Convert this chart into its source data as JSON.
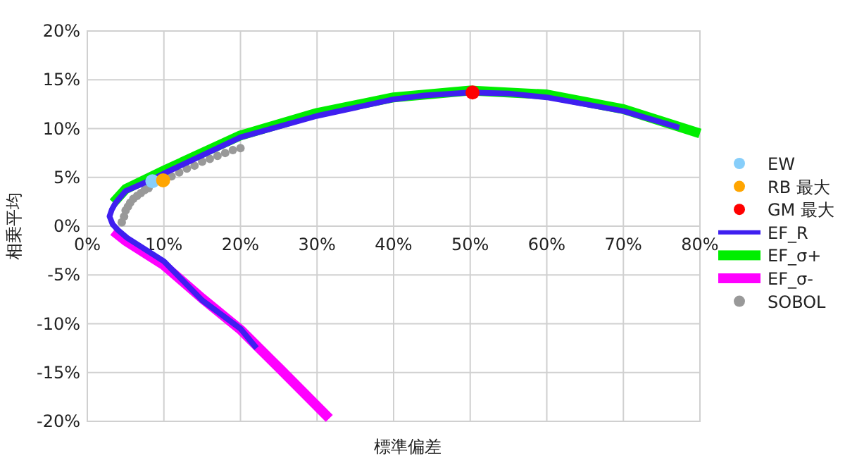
{
  "chart_data": {
    "type": "line",
    "xlabel": "標準偏差",
    "ylabel": "相乗平均",
    "xlim": [
      0,
      80
    ],
    "ylim": [
      -20,
      20
    ],
    "xticks": [
      {
        "value": 0,
        "label": "0%"
      },
      {
        "value": 10,
        "label": "10%"
      },
      {
        "value": 20,
        "label": "20%"
      },
      {
        "value": 30,
        "label": "30%"
      },
      {
        "value": 40,
        "label": "40%"
      },
      {
        "value": 50,
        "label": "50%"
      },
      {
        "value": 60,
        "label": "60%"
      },
      {
        "value": 70,
        "label": "70%"
      },
      {
        "value": 80,
        "label": "80%"
      }
    ],
    "yticks": [
      {
        "value": -20,
        "label": "-20%"
      },
      {
        "value": -15,
        "label": "-15%"
      },
      {
        "value": -10,
        "label": "-10%"
      },
      {
        "value": -5,
        "label": "-5%"
      },
      {
        "value": 0,
        "label": "0%"
      },
      {
        "value": 5,
        "label": "5%"
      },
      {
        "value": 10,
        "label": "10%"
      },
      {
        "value": 15,
        "label": "15%"
      },
      {
        "value": 20,
        "label": "20%"
      }
    ],
    "grid": true,
    "legend": "right",
    "series": [
      {
        "name": "EW",
        "type": "scatter",
        "color": "#87cefa",
        "x": [
          8.5
        ],
        "values": [
          4.6
        ]
      },
      {
        "name": "RB 最大",
        "type": "scatter",
        "color": "#ffa500",
        "x": [
          9.9
        ],
        "values": [
          4.7
        ]
      },
      {
        "name": "GM 最大",
        "type": "scatter",
        "color": "#ff0000",
        "x": [
          50.3
        ],
        "values": [
          13.7
        ]
      },
      {
        "name": "EF_R",
        "color": "#3f1ff0",
        "x": [
          77.3,
          70,
          60,
          55,
          50,
          44,
          40,
          30,
          20,
          10,
          8.5,
          5,
          3.7,
          3.2,
          2.9,
          3.3,
          4,
          5.2,
          10,
          15,
          20,
          22.1
        ],
        "values": [
          10.1,
          11.8,
          13.2,
          13.6,
          13.7,
          13.4,
          13.0,
          11.3,
          9.1,
          5.4,
          4.8,
          3.6,
          2.4,
          1.7,
          1.0,
          0.2,
          -0.4,
          -1.2,
          -3.6,
          -7.6,
          -10.5,
          -12.5
        ]
      },
      {
        "name": "EF_σ+",
        "color": "#00ee00",
        "x": [
          3.4,
          5,
          10,
          20,
          30,
          40,
          50,
          60,
          70,
          80
        ],
        "values": [
          2.4,
          3.8,
          5.7,
          9.3,
          11.6,
          13.2,
          13.9,
          13.5,
          12.0,
          9.5
        ]
      },
      {
        "name": "EF_σ-",
        "color": "#ff00ff",
        "x": [
          3.4,
          5,
          10,
          15,
          20,
          25,
          31.6
        ],
        "values": [
          -0.5,
          -1.5,
          -4.0,
          -7.4,
          -10.6,
          -14.5,
          -19.7
        ]
      },
      {
        "name": "SOBOL",
        "type": "scatter",
        "color": "#999999",
        "x": [
          4.5,
          4.8,
          5,
          5.3,
          5.6,
          6,
          6.5,
          7,
          7.5,
          8,
          11,
          12,
          13,
          14,
          15,
          16,
          17,
          18,
          19,
          20
        ],
        "values": [
          0.4,
          1.0,
          1.6,
          2.0,
          2.4,
          2.8,
          3.1,
          3.4,
          3.7,
          3.9,
          5.1,
          5.5,
          5.9,
          6.2,
          6.6,
          6.9,
          7.2,
          7.5,
          7.8,
          8.0
        ]
      }
    ]
  }
}
